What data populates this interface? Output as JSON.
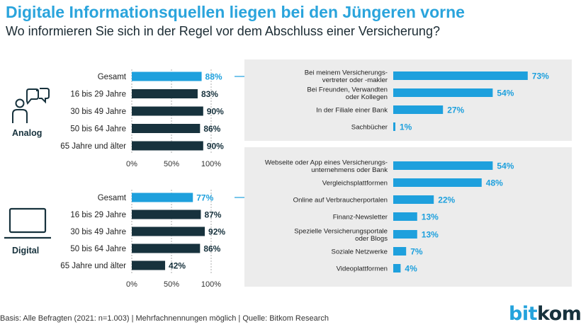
{
  "header": {
    "title": "Digitale Informationsquellen liegen bei den Jüngeren vorne",
    "subtitle": "Wo informieren Sie sich in der Regel vor dem Abschluss einer Versicherung?"
  },
  "colors": {
    "accent": "#1ea0dd",
    "dark": "#17323d",
    "panel": "#ececec",
    "text": "#333333"
  },
  "icons": {
    "analog": "chat-person-icon",
    "digital": "laptop-icon"
  },
  "chart_data": [
    {
      "type": "bar",
      "group_label": "Analog",
      "categories": [
        "Gesamt",
        "16 bis 29 Jahre",
        "30 bis 49 Jahre",
        "50 bis 64 Jahre",
        "65 Jahre und älter"
      ],
      "values": [
        88,
        83,
        90,
        86,
        90
      ],
      "value_labels": [
        "88%",
        "83%",
        "90%",
        "86%",
        "90%"
      ],
      "highlight": "Gesamt",
      "xlim": [
        0,
        100
      ],
      "xticks": [
        "0%",
        "50%",
        "100%"
      ]
    },
    {
      "type": "bar",
      "categories": [
        "Bei meinem Versicherungs-\nvertreter oder -makler",
        "Bei Freunden, Verwandten\noder Kollegen",
        "In der Filiale einer Bank",
        "Sachbücher"
      ],
      "values": [
        73,
        54,
        27,
        1
      ],
      "value_labels": [
        "73%",
        "54%",
        "27%",
        "1%"
      ]
    },
    {
      "type": "bar",
      "group_label": "Digital",
      "categories": [
        "Gesamt",
        "16 bis 29 Jahre",
        "30 bis 49 Jahre",
        "50 bis 64 Jahre",
        "65 Jahre und älter"
      ],
      "values": [
        77,
        87,
        92,
        86,
        42
      ],
      "value_labels": [
        "77%",
        "87%",
        "92%",
        "86%",
        "42%"
      ],
      "highlight": "Gesamt",
      "xlim": [
        0,
        100
      ],
      "xticks": [
        "0%",
        "50%",
        "100%"
      ]
    },
    {
      "type": "bar",
      "categories": [
        "Webseite oder App eines Versicherungs-\nunternehmens oder Bank",
        "Vergleichsplattformen",
        "Online auf Verbraucherportalen",
        "Finanz-Newsletter",
        "Spezielle Versicherungsportale\noder Blogs",
        "Soziale Netzwerke",
        "Videoplattformen"
      ],
      "values": [
        54,
        48,
        22,
        13,
        13,
        7,
        4
      ],
      "value_labels": [
        "54%",
        "48%",
        "22%",
        "13%",
        "13%",
        "7%",
        "4%"
      ]
    }
  ],
  "footer": {
    "note": "Basis: Alle Befragten (2021: n=1.003) | Mehrfachnennungen möglich | Quelle: Bitkom Research",
    "logo_a": "bit",
    "logo_b": "kom"
  }
}
